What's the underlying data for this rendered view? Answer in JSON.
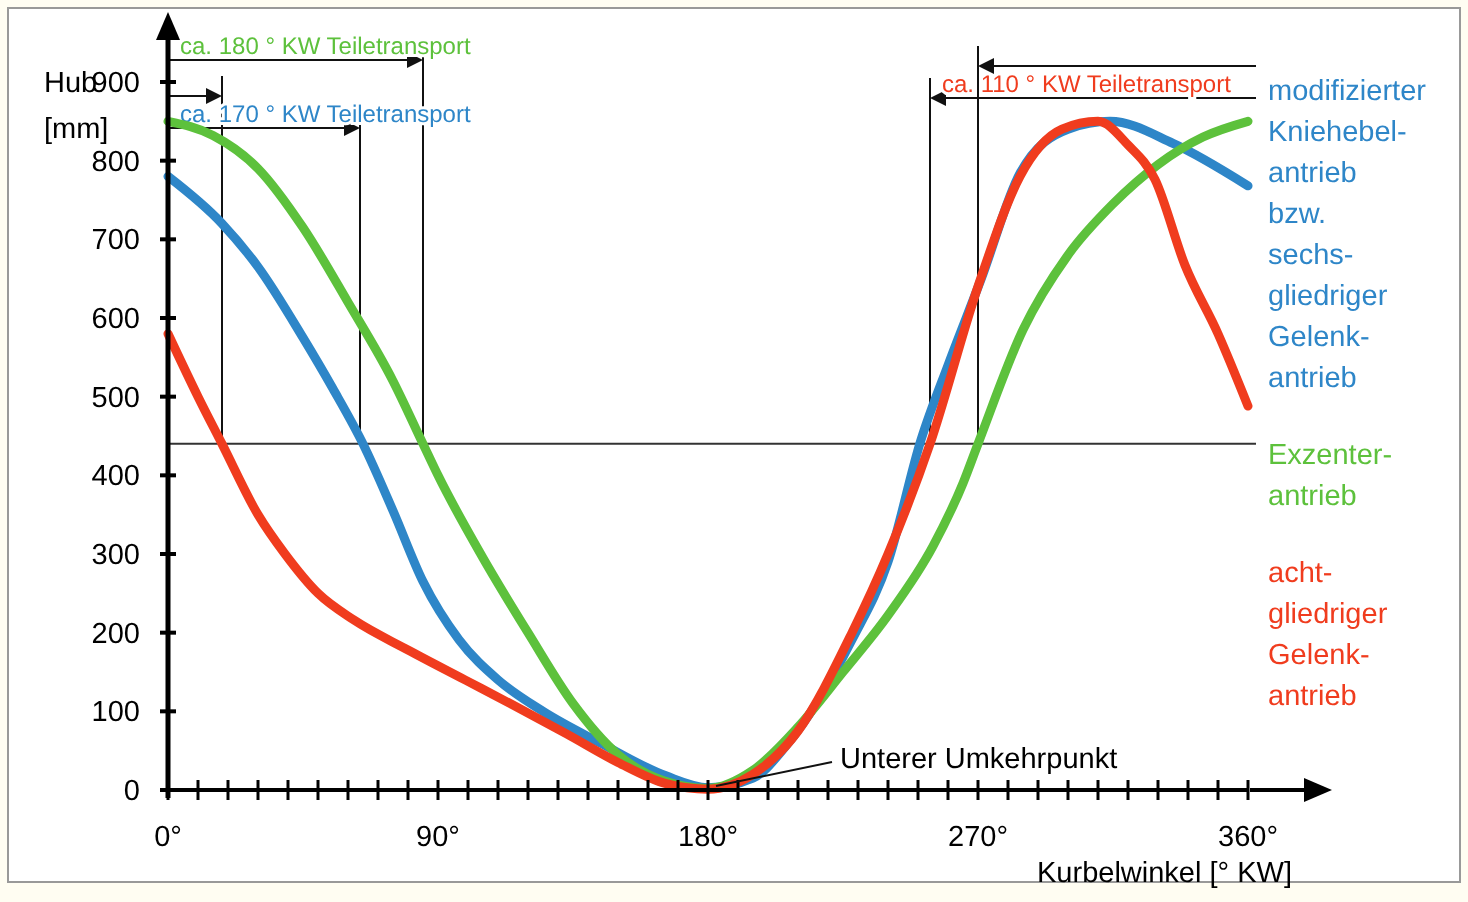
{
  "chart_data": {
    "type": "line",
    "xlabel": "Kurbelwinkel [° KW]",
    "ylabel": "Hub [mm]",
    "xlim": [
      0,
      360
    ],
    "ylim": [
      0,
      900
    ],
    "xticks": [
      {
        "value": 0,
        "label": "0°"
      },
      {
        "value": 10,
        "label": null
      },
      {
        "value": 20,
        "label": null
      },
      {
        "value": 30,
        "label": null
      },
      {
        "value": 40,
        "label": null
      },
      {
        "value": 50,
        "label": null
      },
      {
        "value": 60,
        "label": null
      },
      {
        "value": 70,
        "label": null
      },
      {
        "value": 80,
        "label": null
      },
      {
        "value": 90,
        "label": "90°"
      },
      {
        "value": 100,
        "label": null
      },
      {
        "value": 110,
        "label": null
      },
      {
        "value": 120,
        "label": null
      },
      {
        "value": 130,
        "label": null
      },
      {
        "value": 140,
        "label": null
      },
      {
        "value": 150,
        "label": null
      },
      {
        "value": 160,
        "label": null
      },
      {
        "value": 170,
        "label": null
      },
      {
        "value": 180,
        "label": "180°"
      },
      {
        "value": 190,
        "label": null
      },
      {
        "value": 200,
        "label": null
      },
      {
        "value": 210,
        "label": null
      },
      {
        "value": 220,
        "label": null
      },
      {
        "value": 230,
        "label": null
      },
      {
        "value": 240,
        "label": null
      },
      {
        "value": 250,
        "label": null
      },
      {
        "value": 260,
        "label": null
      },
      {
        "value": 270,
        "label": "270°"
      },
      {
        "value": 280,
        "label": null
      },
      {
        "value": 290,
        "label": null
      },
      {
        "value": 300,
        "label": null
      },
      {
        "value": 310,
        "label": null
      },
      {
        "value": 320,
        "label": null
      },
      {
        "value": 330,
        "label": null
      },
      {
        "value": 340,
        "label": null
      },
      {
        "value": 350,
        "label": null
      },
      {
        "value": 360,
        "label": "360°"
      }
    ],
    "yticks": [
      0,
      100,
      200,
      300,
      400,
      500,
      600,
      700,
      800,
      900
    ],
    "grid": false,
    "legend": "right",
    "marker": "none",
    "line_style": "solid",
    "series": [
      {
        "name": "modifizierter\nKniehebel-\nantrieb\nbzw.\nsechs-\ngliedriger\nGelenk-\nantrieb",
        "color": "#2e86c8",
        "x": [
          0,
          18,
          30,
          45,
          55,
          65,
          75,
          85,
          97,
          110,
          125,
          144,
          166,
          180,
          195,
          206,
          228,
          240,
          251,
          260,
          271,
          284,
          300,
          314,
          335,
          360
        ],
        "values": [
          780,
          720,
          665,
          575,
          510,
          440,
          355,
          265,
          191,
          140,
          100,
          60,
          18,
          3,
          15,
          56,
          191,
          290,
          445,
          540,
          649,
          784,
          840,
          850,
          822,
          768
        ]
      },
      {
        "name": "Exzenter-\nantrieb",
        "color": "#5dc13c",
        "x": [
          0,
          15,
          30,
          45,
          60,
          75,
          85,
          90,
          105,
          120,
          135,
          150,
          165,
          180,
          195,
          210,
          225,
          240,
          255,
          265,
          270,
          285,
          300,
          315,
          330,
          345,
          360
        ],
        "values": [
          850,
          832,
          790,
          715,
          620,
          520,
          440,
          400,
          295,
          200,
          110,
          45,
          12,
          2,
          25,
          80,
          150,
          222,
          310,
          390,
          440,
          585,
          680,
          745,
          795,
          830,
          850
        ]
      },
      {
        "name": "acht-\ngliedriger\nGelenk-\nantrieb",
        "color": "#f03c1e",
        "x": [
          0,
          10,
          18,
          30,
          39,
          50,
          62,
          80,
          99,
          115,
          133,
          150,
          166,
          180,
          195,
          210,
          228,
          240,
          254,
          270,
          284,
          298,
          310,
          320,
          329,
          339,
          350,
          360
        ],
        "values": [
          580,
          500,
          440,
          350,
          300,
          250,
          216,
          178,
          140,
          108,
          71,
          35,
          8,
          1,
          20,
          75,
          200,
          300,
          440,
          640,
          780,
          840,
          850,
          820,
          776,
          667,
          580,
          488
        ]
      }
    ],
    "ref_lines": [
      {
        "axis": "y",
        "value": 440
      },
      {
        "axis": "x",
        "value": 18
      },
      {
        "axis": "x",
        "value": 64,
        "label": "ca. 170 ° KW Teiletransport"
      },
      {
        "axis": "x",
        "value": 85,
        "label": "ca. 180 ° KW Teiletransport"
      },
      {
        "axis": "x",
        "value": 254,
        "label": "ca. 110 ° KW Teiletransport"
      },
      {
        "axis": "x",
        "value": 270
      }
    ],
    "annotations": [
      {
        "text": "Unterer Umkehrpunkt",
        "x": 180,
        "y": 0
      }
    ]
  }
}
